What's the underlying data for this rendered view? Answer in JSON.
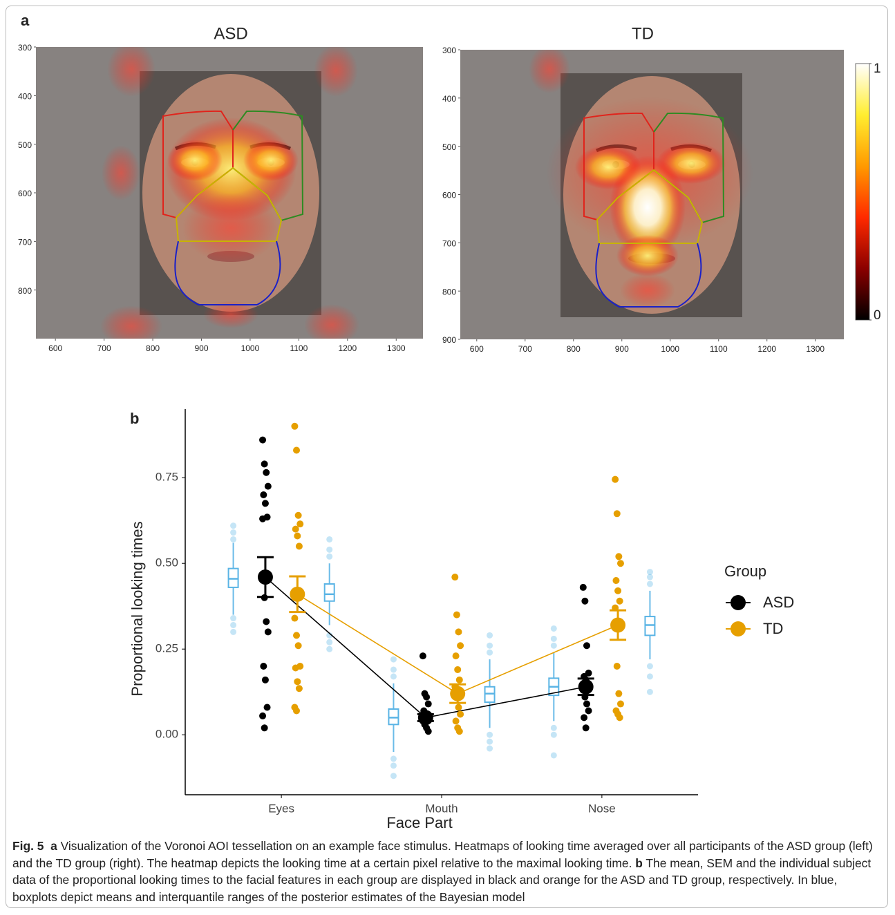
{
  "chart_data": [
    {
      "type": "heatmap",
      "title": "ASD",
      "panel_label": "a",
      "xlim": [
        560,
        1355
      ],
      "ylim": [
        300,
        900
      ],
      "xticks": [
        600,
        700,
        800,
        900,
        1000,
        1100,
        1200,
        1300
      ],
      "yticks": [
        300,
        400,
        500,
        600,
        700,
        800
      ]
    },
    {
      "type": "heatmap",
      "title": "TD",
      "xlim": [
        566,
        1359
      ],
      "ylim": [
        300,
        900
      ],
      "xticks": [
        600,
        700,
        800,
        900,
        1000,
        1100,
        1200,
        1300
      ],
      "yticks": [
        300,
        400,
        500,
        600,
        700,
        800,
        900
      ]
    },
    {
      "type": "colorbar",
      "lim": [
        0,
        1
      ],
      "ticks": [
        0,
        1
      ],
      "colors": [
        "#000000",
        "#8b0000",
        "#ff2a00",
        "#ff9a00",
        "#ffee30",
        "#ffffff"
      ]
    },
    {
      "type": "dotbox",
      "panel_label": "b",
      "x_label": "Face Part",
      "y_label": "Proportional looking times",
      "categories": [
        "Eyes",
        "Mouth",
        "Nose"
      ],
      "ylim": [
        -0.175,
        0.95
      ],
      "yticks": [
        {
          "value": 0,
          "label": "0.00"
        },
        0.25,
        {
          "value": 0.5,
          "label": "0.50"
        },
        0.75
      ],
      "legend_title": "Group",
      "series": [
        {
          "name": "ASD",
          "color": "#000000",
          "values": [
            0.46,
            0.05,
            0.14
          ],
          "errors": [
            0.058,
            0.01,
            0.024
          ],
          "points": [
            [
              0.86,
              0.79,
              0.765,
              0.725,
              0.7,
              0.675,
              0.635,
              0.63,
              0.4,
              0.33,
              0.3,
              0.2,
              0.16,
              0.08,
              0.055,
              0.02
            ],
            [
              0.23,
              0.12,
              0.11,
              0.09,
              0.07,
              0.06,
              0.05,
              0.04,
              0.03,
              0.02,
              0.01
            ],
            [
              0.43,
              0.39,
              0.26,
              0.18,
              0.17,
              0.16,
              0.15,
              0.13,
              0.11,
              0.09,
              0.07,
              0.05,
              0.02
            ]
          ]
        },
        {
          "name": "TD",
          "color": "#e69f00",
          "values": [
            0.41,
            0.12,
            0.32
          ],
          "errors": [
            0.052,
            0.027,
            0.043
          ],
          "points": [
            [
              0.9,
              0.83,
              0.64,
              0.615,
              0.6,
              0.58,
              0.55,
              0.34,
              0.29,
              0.26,
              0.2,
              0.195,
              0.155,
              0.135,
              0.08,
              0.07
            ],
            [
              0.46,
              0.35,
              0.3,
              0.26,
              0.23,
              0.19,
              0.16,
              0.14,
              0.11,
              0.08,
              0.06,
              0.04,
              0.02,
              0.01
            ],
            [
              0.745,
              0.645,
              0.52,
              0.5,
              0.45,
              0.42,
              0.39,
              0.37,
              0.2,
              0.12,
              0.09,
              0.07,
              0.06,
              0.05
            ]
          ]
        }
      ],
      "box_color": "#5ab4e5",
      "boxes": [
        {
          "low": 0.35,
          "q1": 0.43,
          "median": 0.455,
          "q3": 0.485,
          "high": 0.56,
          "outliers": [
            0.3,
            0.32,
            0.34,
            0.57,
            0.59,
            0.61
          ]
        },
        {
          "low": 0.32,
          "q1": 0.39,
          "median": 0.41,
          "q3": 0.44,
          "high": 0.5,
          "outliers": [
            0.25,
            0.27,
            0.29,
            0.52,
            0.54,
            0.57
          ]
        },
        {
          "low": -0.05,
          "q1": 0.03,
          "median": 0.05,
          "q3": 0.075,
          "high": 0.15,
          "outliers": [
            -0.12,
            -0.09,
            -0.07,
            0.17,
            0.19,
            0.22
          ]
        },
        {
          "low": 0.02,
          "q1": 0.095,
          "median": 0.12,
          "q3": 0.14,
          "high": 0.22,
          "outliers": [
            -0.04,
            -0.02,
            0.0,
            0.24,
            0.26,
            0.29
          ]
        },
        {
          "low": 0.04,
          "q1": 0.115,
          "median": 0.14,
          "q3": 0.165,
          "high": 0.24,
          "outliers": [
            -0.06,
            0.0,
            0.02,
            0.26,
            0.28,
            0.31
          ]
        },
        {
          "low": 0.22,
          "q1": 0.29,
          "median": 0.32,
          "q3": 0.345,
          "high": 0.42,
          "outliers": [
            0.125,
            0.17,
            0.2,
            0.44,
            0.46,
            0.475
          ]
        }
      ]
    }
  ],
  "caption": {
    "figure": "Fig. 5",
    "parts": [
      {
        "label": "a",
        "text": "Visualization of the Voronoi AOI tessellation on an example face stimulus. Heatmaps of looking time averaged over all participants of the ASD group (left) and the TD group (right). The heatmap depicts the looking time at a certain pixel relative to the maximal looking time."
      },
      {
        "label": "b",
        "text": "The mean, SEM and the individual subject data of the proportional looking times to the facial features in each group are displayed in black and orange for the ASD and TD group, respectively. In blue, boxplots depict means and interquantile ranges of the posterior estimates of the Bayesian model"
      }
    ]
  }
}
